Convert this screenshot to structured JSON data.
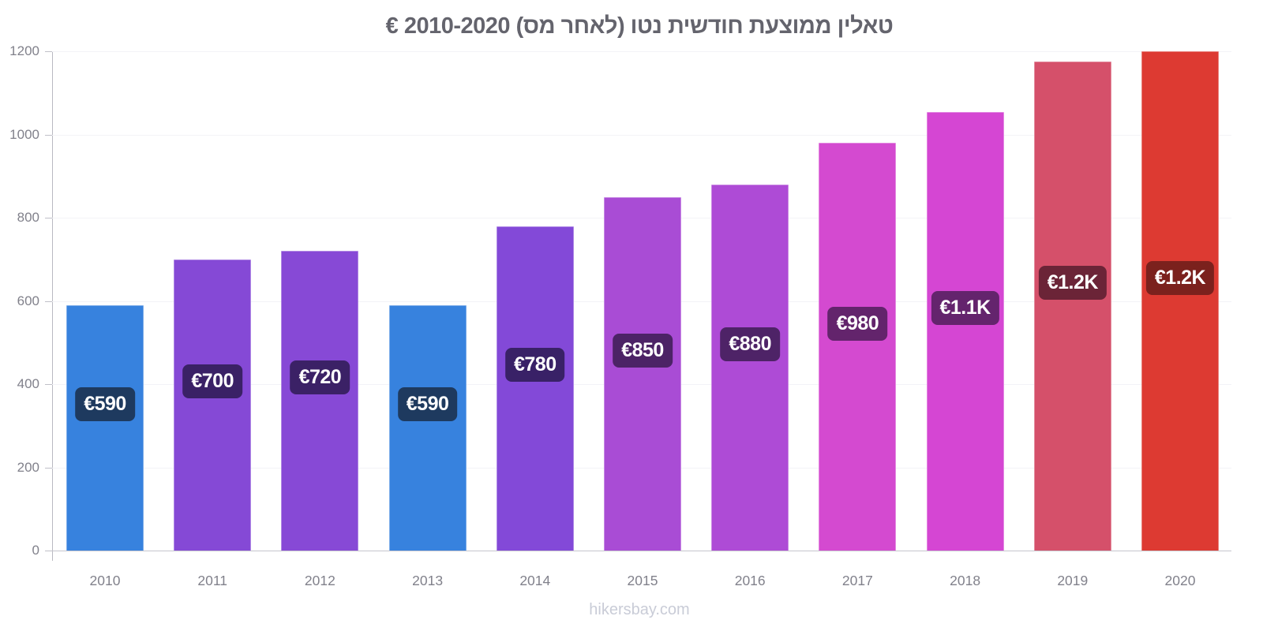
{
  "title": "טאלין ממוצעת חודשית נטו (לאחר מס) 2010-2020 €",
  "footer": "hikersbay.com",
  "colors": {
    "axis": "#b9b9c1",
    "grid": "#f3f3f7",
    "tick_text": "#81818b",
    "title_text": "#64646d",
    "footer_text": "#c9ccd7",
    "badge_text": "#ffffff"
  },
  "chart_data": {
    "type": "bar",
    "title": "טאלין ממוצעת חודשית נטו (לאחר מס) 2010-2020 €",
    "xlabel": "",
    "ylabel": "",
    "categories": [
      "2010",
      "2011",
      "2012",
      "2013",
      "2014",
      "2015",
      "2016",
      "2017",
      "2018",
      "2019",
      "2020"
    ],
    "values": [
      590,
      700,
      720,
      590,
      780,
      850,
      880,
      980,
      1055,
      1175,
      1200
    ],
    "bar_labels": [
      "€590",
      "€700",
      "€720",
      "€590",
      "€780",
      "€850",
      "€880",
      "€980",
      "€1.1K",
      "€1.2K",
      "€1.2K"
    ],
    "bar_colors": [
      "#3782de",
      "#8549d6",
      "#8749d6",
      "#3782de",
      "#8349d8",
      "#a94cd5",
      "#ae4bd6",
      "#d44ad0",
      "#d546d3",
      "#d5506a",
      "#dd3a32"
    ],
    "badge_colors": [
      "#1e3a5f",
      "#3a2166",
      "#3b2166",
      "#1e3a5f",
      "#392167",
      "#4c2366",
      "#4e2367",
      "#63246c",
      "#64246d",
      "#6b2437",
      "#7b211d"
    ],
    "ylim": [
      0,
      1200
    ],
    "yticks": [
      0,
      200,
      400,
      600,
      800,
      1000,
      1200
    ],
    "grid": true,
    "legend": false,
    "currency": "€"
  }
}
